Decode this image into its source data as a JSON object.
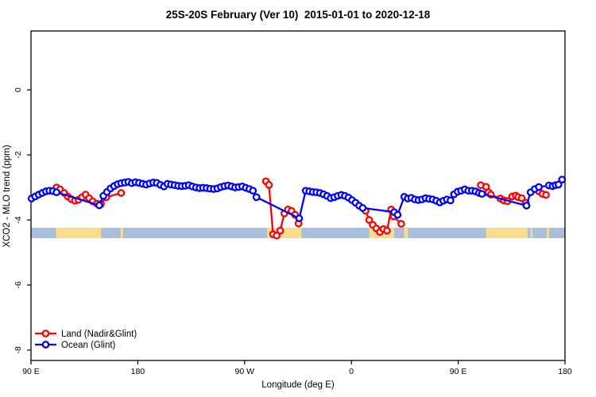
{
  "chart_data": {
    "type": "line",
    "title": "25S-20S February (Ver 10)  2015-01-01 to 2020-12-18",
    "xlabel": "Longitude (deg E)",
    "ylabel": "XCO2 - MLO trend (ppm)",
    "xlim": [
      90,
      540
    ],
    "ylim": [
      -8.32,
      1.81
    ],
    "grid": false,
    "x_ticks": [
      {
        "v": 90,
        "label": "90 E"
      },
      {
        "v": 180,
        "label": "180"
      },
      {
        "v": 270,
        "label": "90 W"
      },
      {
        "v": 360,
        "label": "0"
      },
      {
        "v": 450,
        "label": "90 E"
      },
      {
        "v": 540,
        "label": "180"
      }
    ],
    "y_ticks": [
      {
        "v": 0,
        "label": "0"
      },
      {
        "v": -2,
        "label": "-2"
      },
      {
        "v": -4,
        "label": "-4"
      },
      {
        "v": -6,
        "label": "-6"
      },
      {
        "v": -8,
        "label": "-8"
      }
    ],
    "legend": {
      "position": "bottom-left",
      "items": [
        {
          "label": "Land (Nadir&Glint)",
          "color": "#ff0000"
        },
        {
          "label": "Ocean (Glint)",
          "color": "#0000ff"
        }
      ]
    },
    "map_band": {
      "comment_colors": "latitude-strip map drawn across plot",
      "value_top": -4.24,
      "value_bottom": -4.56,
      "ocean_color": "#a9bedc",
      "land_color": "#f9dc8e",
      "land_patches_lon": [
        [
          111,
          149
        ],
        [
          165.5,
          167.5
        ],
        [
          289,
          318
        ],
        [
          375,
          396
        ],
        [
          404.5,
          407.5
        ],
        [
          473.5,
          508.5
        ],
        [
          511,
          512.5
        ],
        [
          524.5,
          526.5
        ]
      ]
    },
    "series": [
      {
        "name": "Land (Nadir&Glint)",
        "color": "#ff0000",
        "marker": "open-circle",
        "segments": [
          [
            [
              111.5,
              -3.0
            ],
            [
              114.5,
              -3.06
            ],
            [
              118,
              -3.17
            ],
            [
              121,
              -3.28
            ],
            [
              124,
              -3.36
            ],
            [
              127,
              -3.41
            ],
            [
              130,
              -3.38
            ],
            [
              133,
              -3.3
            ],
            [
              136,
              -3.22
            ],
            [
              139,
              -3.33
            ],
            [
              142,
              -3.43
            ],
            [
              145.5,
              -3.5
            ],
            [
              149,
              -3.51
            ],
            [
              153.5,
              -3.3
            ],
            [
              166,
              -3.17
            ]
          ],
          [
            [
              288,
              -2.81
            ],
            [
              290.5,
              -2.92
            ],
            [
              294,
              -4.44
            ],
            [
              297,
              -4.48
            ],
            [
              300,
              -4.33
            ],
            [
              303.5,
              -3.8
            ],
            [
              306.5,
              -3.68
            ],
            [
              309.5,
              -3.72
            ],
            [
              312.5,
              -3.84
            ],
            [
              315.5,
              -4.11
            ]
          ],
          [
            [
              372,
              -3.72
            ],
            [
              375,
              -4.0
            ],
            [
              378,
              -4.15
            ],
            [
              381,
              -4.26
            ],
            [
              384,
              -4.37
            ],
            [
              387,
              -4.28
            ],
            [
              390,
              -4.33
            ],
            [
              393.5,
              -3.68
            ],
            [
              395.5,
              -3.89
            ],
            [
              402,
              -4.12
            ]
          ],
          [
            [
              469,
              -2.93
            ],
            [
              473.5,
              -2.98
            ],
            [
              475.5,
              -3.15
            ],
            [
              477.5,
              -3.22
            ],
            [
              485.5,
              -3.34
            ],
            [
              488.5,
              -3.4
            ],
            [
              491.5,
              -3.42
            ],
            [
              495.5,
              -3.28
            ],
            [
              498.5,
              -3.25
            ],
            [
              500.5,
              -3.3
            ],
            [
              503.5,
              -3.33
            ],
            [
              507,
              -3.47
            ]
          ],
          [
            [
              518,
              -3.12
            ],
            [
              521,
              -3.2
            ],
            [
              524,
              -3.23
            ]
          ]
        ]
      },
      {
        "name": "Ocean (Glint)",
        "color": "#0000ff",
        "marker": "open-circle",
        "segments": [
          [
            [
              90.5,
              -3.34
            ],
            [
              93.5,
              -3.28
            ],
            [
              96.5,
              -3.22
            ],
            [
              99.5,
              -3.17
            ],
            [
              102.5,
              -3.12
            ],
            [
              105.5,
              -3.1
            ],
            [
              108.5,
              -3.11
            ],
            [
              111.5,
              -3.15
            ],
            [
              147.5,
              -3.55
            ],
            [
              151,
              -3.26
            ],
            [
              154,
              -3.14
            ],
            [
              157,
              -3.03
            ],
            [
              160,
              -2.96
            ],
            [
              163,
              -2.9
            ],
            [
              166,
              -2.87
            ],
            [
              169,
              -2.85
            ],
            [
              172,
              -2.83
            ],
            [
              175,
              -2.87
            ],
            [
              178,
              -2.84
            ],
            [
              181,
              -2.86
            ],
            [
              184,
              -2.89
            ],
            [
              187,
              -2.91
            ],
            [
              190,
              -2.88
            ],
            [
              193,
              -2.85
            ],
            [
              196,
              -2.86
            ],
            [
              199,
              -2.92
            ],
            [
              202,
              -2.97
            ],
            [
              205,
              -2.89
            ],
            [
              208,
              -2.91
            ],
            [
              211,
              -2.93
            ],
            [
              214,
              -2.95
            ],
            [
              217,
              -2.96
            ],
            [
              220,
              -2.95
            ],
            [
              223,
              -2.93
            ],
            [
              226,
              -2.97
            ],
            [
              229,
              -3.0
            ],
            [
              232,
              -3.02
            ],
            [
              235,
              -3.01
            ],
            [
              238,
              -3.02
            ],
            [
              241,
              -3.04
            ],
            [
              244,
              -3.05
            ],
            [
              247,
              -3.03
            ],
            [
              250,
              -2.99
            ],
            [
              253,
              -2.96
            ],
            [
              256,
              -2.94
            ],
            [
              259,
              -2.97
            ],
            [
              262,
              -3.0
            ],
            [
              265,
              -2.99
            ],
            [
              268,
              -2.97
            ],
            [
              271,
              -3.01
            ],
            [
              274,
              -3.05
            ],
            [
              277,
              -3.1
            ],
            [
              280,
              -3.3
            ],
            [
              316,
              -3.95
            ],
            [
              321.5,
              -3.1
            ],
            [
              324.5,
              -3.12
            ],
            [
              327.5,
              -3.14
            ],
            [
              330.5,
              -3.15
            ],
            [
              333.5,
              -3.17
            ],
            [
              336.5,
              -3.21
            ],
            [
              339.5,
              -3.26
            ],
            [
              342.5,
              -3.33
            ],
            [
              345.5,
              -3.3
            ],
            [
              348.5,
              -3.26
            ],
            [
              351.5,
              -3.23
            ],
            [
              354.5,
              -3.26
            ],
            [
              357.5,
              -3.31
            ],
            [
              360.5,
              -3.39
            ],
            [
              363.5,
              -3.47
            ],
            [
              366.5,
              -3.56
            ],
            [
              369.5,
              -3.63
            ],
            [
              396,
              -3.76
            ],
            [
              399,
              -3.84
            ],
            [
              404.5,
              -3.29
            ],
            [
              407.5,
              -3.34
            ],
            [
              410.5,
              -3.32
            ],
            [
              413.5,
              -3.37
            ],
            [
              416.5,
              -3.39
            ],
            [
              419.5,
              -3.37
            ],
            [
              422.5,
              -3.33
            ],
            [
              425.5,
              -3.35
            ],
            [
              428.5,
              -3.37
            ],
            [
              431.5,
              -3.41
            ],
            [
              434.5,
              -3.46
            ],
            [
              437.5,
              -3.41
            ],
            [
              440.5,
              -3.37
            ],
            [
              443.5,
              -3.4
            ],
            [
              446.5,
              -3.21
            ],
            [
              449.5,
              -3.13
            ],
            [
              452.5,
              -3.1
            ],
            [
              455.5,
              -3.06
            ],
            [
              458.5,
              -3.1
            ],
            [
              461.5,
              -3.1
            ],
            [
              464.5,
              -3.12
            ],
            [
              467.5,
              -3.17
            ],
            [
              470,
              -3.2
            ],
            [
              507.5,
              -3.56
            ],
            [
              511,
              -3.15
            ],
            [
              514.5,
              -3.05
            ],
            [
              518,
              -2.99
            ],
            [
              526.5,
              -2.94
            ],
            [
              529.5,
              -2.96
            ],
            [
              532,
              -2.93
            ],
            [
              534.5,
              -2.91
            ],
            [
              537.5,
              -2.76
            ]
          ]
        ]
      }
    ]
  }
}
